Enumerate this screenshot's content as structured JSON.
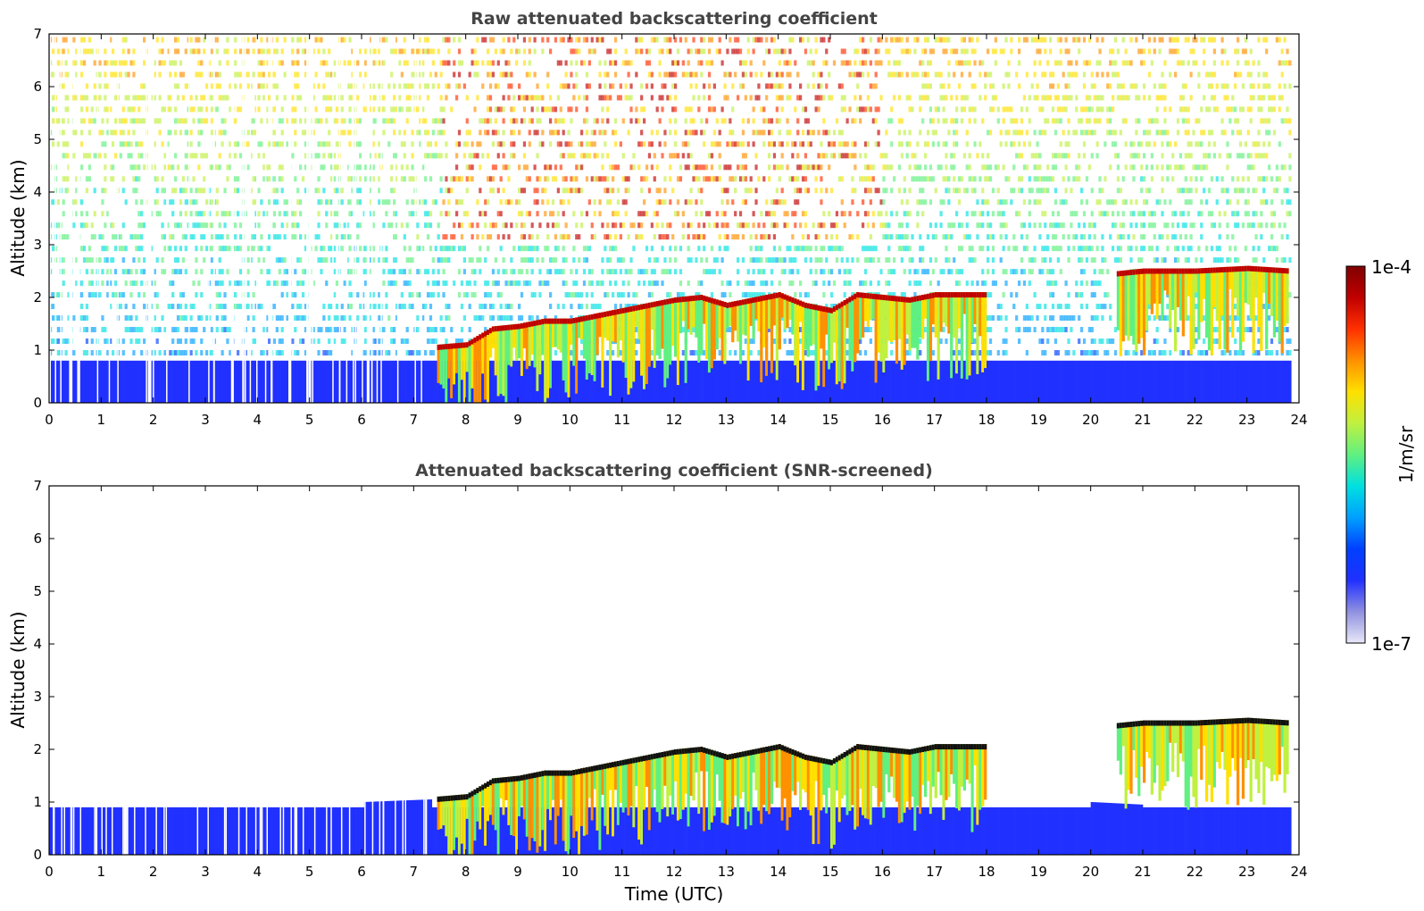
{
  "chart_data": [
    {
      "type": "heatmap",
      "title": "Raw attenuated backscattering coefficient",
      "xlabel": "",
      "ylabel": "Altitude (km)",
      "xlim": [
        0,
        24
      ],
      "ylim": [
        0,
        7
      ],
      "xticks": [
        0,
        1,
        2,
        3,
        4,
        5,
        6,
        7,
        8,
        9,
        10,
        11,
        12,
        13,
        14,
        15,
        16,
        17,
        18,
        19,
        20,
        21,
        22,
        23,
        24
      ],
      "yticks": [
        0,
        1,
        2,
        3,
        4,
        5,
        6,
        7
      ],
      "grid": false,
      "cloud_layer_top_km": [
        {
          "x": 7.4,
          "y": 1.1
        },
        {
          "x": 8,
          "y": 1.15
        },
        {
          "x": 8.5,
          "y": 1.45
        },
        {
          "x": 9,
          "y": 1.5
        },
        {
          "x": 9.5,
          "y": 1.6
        },
        {
          "x": 10,
          "y": 1.6
        },
        {
          "x": 10.5,
          "y": 1.7
        },
        {
          "x": 11,
          "y": 1.8
        },
        {
          "x": 11.5,
          "y": 1.9
        },
        {
          "x": 12,
          "y": 2.0
        },
        {
          "x": 12.5,
          "y": 2.05
        },
        {
          "x": 13,
          "y": 1.9
        },
        {
          "x": 13.5,
          "y": 2.0
        },
        {
          "x": 14,
          "y": 2.1
        },
        {
          "x": 14.5,
          "y": 1.9
        },
        {
          "x": 15,
          "y": 1.8
        },
        {
          "x": 15.5,
          "y": 2.1
        },
        {
          "x": 16.5,
          "y": 2.0
        },
        {
          "x": 17,
          "y": 2.1
        },
        {
          "x": 17.5,
          "y": 2.1
        },
        {
          "x": 18,
          "y": 2.1
        },
        {
          "x": 20.5,
          "y": 2.5
        },
        {
          "x": 21,
          "y": 2.55
        },
        {
          "x": 22,
          "y": 2.55
        },
        {
          "x": 23,
          "y": 2.6
        },
        {
          "x": 23.8,
          "y": 2.55
        }
      ]
    },
    {
      "type": "heatmap",
      "title": "Attenuated backscattering coefficient (SNR-screened)",
      "xlabel": "Time (UTC)",
      "ylabel": "Altitude (km)",
      "xlim": [
        0,
        24
      ],
      "ylim": [
        0,
        7
      ],
      "xticks": [
        0,
        1,
        2,
        3,
        4,
        5,
        6,
        7,
        8,
        9,
        10,
        11,
        12,
        13,
        14,
        15,
        16,
        17,
        18,
        19,
        20,
        21,
        22,
        23,
        24
      ],
      "yticks": [
        0,
        1,
        2,
        3,
        4,
        5,
        6,
        7
      ],
      "grid": false,
      "boundary_layer_top_km": [
        {
          "x": 0,
          "y": 1.2
        },
        {
          "x": 2,
          "y": 1.1
        },
        {
          "x": 4,
          "y": 1.0
        },
        {
          "x": 6,
          "y": 1.0
        },
        {
          "x": 7.3,
          "y": 1.05
        },
        {
          "x": 18,
          "y": 1.05
        },
        {
          "x": 20,
          "y": 1.0
        },
        {
          "x": 21,
          "y": 0.95
        }
      ]
    }
  ],
  "colorbar": {
    "label": "1/m/sr",
    "max_label": "1e-4",
    "min_label": "1e-7",
    "colors": [
      "#e8e8f8",
      "#9090e0",
      "#2030ff",
      "#0040ff",
      "#00a0ff",
      "#00e0e0",
      "#60f080",
      "#c0f040",
      "#ffe000",
      "#ff9000",
      "#ff3000",
      "#c00000",
      "#800000"
    ]
  }
}
